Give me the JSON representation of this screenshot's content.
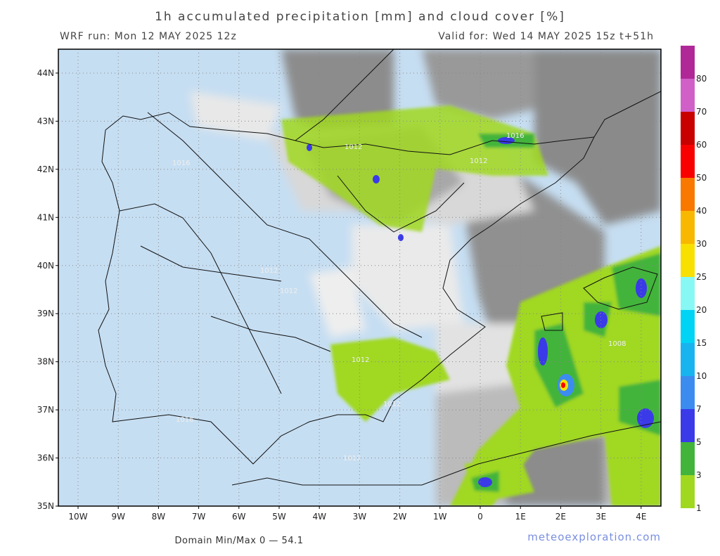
{
  "header": {
    "title": "1h accumulated precipitation [mm] and cloud cover [%]",
    "run": "WRF run: Mon 12 MAY 2025 12z",
    "valid": "Valid for: Wed 14 MAY 2025 15z  t+51h"
  },
  "map": {
    "lat_labels": [
      "35N",
      "36N",
      "37N",
      "38N",
      "39N",
      "40N",
      "41N",
      "42N",
      "43N",
      "44N"
    ],
    "lon_labels": [
      "10W",
      "9W",
      "8W",
      "7W",
      "6W",
      "5W",
      "4W",
      "3W",
      "2W",
      "1W",
      "0",
      "1E",
      "2E",
      "3E",
      "4E"
    ],
    "isobar_labels": [
      "1016",
      "1016",
      "1012",
      "1012",
      "1012",
      "1016",
      "1012",
      "1012",
      "1012",
      "1008",
      "1012"
    ]
  },
  "legend": {
    "levels": [
      {
        "label": "1",
        "color": "#a0d820"
      },
      {
        "label": "3",
        "color": "#42b43a"
      },
      {
        "label": "5",
        "color": "#3a3ae8"
      },
      {
        "label": "7",
        "color": "#3c8cf0"
      },
      {
        "label": "10",
        "color": "#18b4f0"
      },
      {
        "label": "15",
        "color": "#00d4f4"
      },
      {
        "label": "20",
        "color": "#88f8f4"
      },
      {
        "label": "25",
        "color": "#f8e000"
      },
      {
        "label": "30",
        "color": "#f8b800"
      },
      {
        "label": "40",
        "color": "#f87800"
      },
      {
        "label": "50",
        "color": "#f80000"
      },
      {
        "label": "60",
        "color": "#c80000"
      },
      {
        "label": "70",
        "color": "#d060c8"
      },
      {
        "label": "80",
        "color": "#b02898"
      }
    ],
    "top_color": "#800098"
  },
  "footer": {
    "minmax": "Domain Min/Max 0 — 54.1",
    "credit": "meteoexploration.com"
  }
}
